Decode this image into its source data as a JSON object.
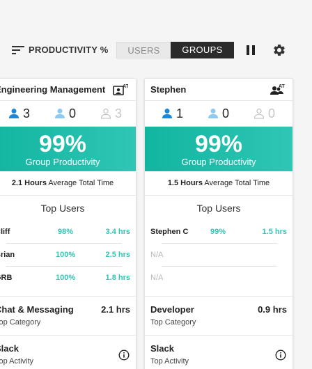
{
  "toolbar": {
    "title": "PRODUCTIVITY %",
    "toggle_users": "USERS",
    "toggle_groups": "GROUPS",
    "sort_icon": "sort-icon",
    "pause_icon": "pause-icon",
    "settings_icon": "gear-icon"
  },
  "colors": {
    "accent": "#2fc6b4",
    "active_user_blue": "#1e88d6",
    "passive_user_blue": "#8ec9f0",
    "inactive_grey": "#c7c7c7"
  },
  "groups": [
    {
      "name": "Engineering Management",
      "admin_badge": "AT",
      "counts": {
        "active": "3",
        "passive": "0",
        "inactive": "3"
      },
      "productivity": "99%",
      "productivity_label": "Group Productivity",
      "avg_value": "2.1 Hours",
      "avg_label": "Average Total Time",
      "top_users_title": "Top Users",
      "top_users": [
        {
          "name": "Cliff",
          "pct": "98%",
          "hrs": "3.4 hrs"
        },
        {
          "name": "Brian",
          "pct": "100%",
          "hrs": "2.5 hrs"
        },
        {
          "name": "GRB",
          "pct": "100%",
          "hrs": "1.8 hrs"
        }
      ],
      "top_category": {
        "name": "Chat & Messaging",
        "value": "2.1 hrs",
        "label": "Top Category"
      },
      "top_activity": {
        "name": "Slack",
        "label": "Top Activity"
      }
    },
    {
      "name": "Stephen",
      "admin_badge": "AT",
      "counts": {
        "active": "1",
        "passive": "0",
        "inactive": "0"
      },
      "productivity": "99%",
      "productivity_label": "Group Productivity",
      "avg_value": "1.5 Hours",
      "avg_label": "Average Total Time",
      "top_users_title": "Top Users",
      "top_users": [
        {
          "name": "Stephen C",
          "pct": "99%",
          "hrs": "1.5 hrs"
        },
        {
          "name": "N/A",
          "pct": "",
          "hrs": ""
        },
        {
          "name": "N/A",
          "pct": "",
          "hrs": ""
        }
      ],
      "top_category": {
        "name": "Developer",
        "value": "0.9 hrs",
        "label": "Top Category"
      },
      "top_activity": {
        "name": "Slack",
        "label": "Top Activity"
      }
    }
  ]
}
